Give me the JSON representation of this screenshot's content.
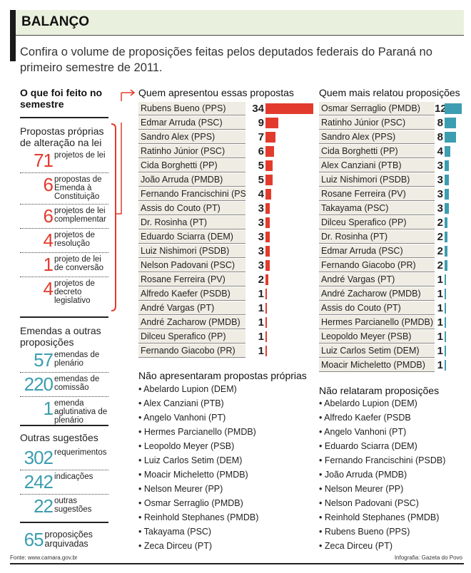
{
  "header": {
    "title": "BALANÇO",
    "subtitle": "Confira o volume de proposições feitas pelos deputados federais do Paraná no primeiro semestre de 2011."
  },
  "colors": {
    "red": "#e23b2e",
    "teal": "#3c9eb0",
    "header_bg": "#e9f1de",
    "row_bg": "#efece4"
  },
  "left": {
    "title": "O que foi feito no semestre",
    "propostas": {
      "title": "Propostas próprias de alteração na lei",
      "items": [
        {
          "n": "71",
          "label": "projetos de lei"
        },
        {
          "n": "6",
          "label": "propostas de Emenda à Constituição"
        },
        {
          "n": "6",
          "label": "projetos de lei complementar"
        },
        {
          "n": "4",
          "label": "projetos de resolução"
        },
        {
          "n": "1",
          "label": "projeto de lei de conversão"
        },
        {
          "n": "4",
          "label": "projetos de decreto legislativo"
        }
      ]
    },
    "emendas": {
      "title": "Emendas a outras proposições",
      "items": [
        {
          "n": "57",
          "label": "emendas de plenário"
        },
        {
          "n": "220",
          "label": "emendas de comissão"
        },
        {
          "n": "1",
          "label": "emenda aglutinativa de plenário"
        }
      ]
    },
    "outras": {
      "title": "Outras sugestões",
      "items": [
        {
          "n": "302",
          "label": "requerimentos"
        },
        {
          "n": "242",
          "label": "indicações"
        },
        {
          "n": "22",
          "label": "outras sugestões"
        }
      ]
    },
    "arquivadas": {
      "n": "65",
      "label": "proposições arquivadas"
    }
  },
  "chart_data": [
    {
      "type": "bar",
      "orientation": "horizontal",
      "title": "Quem apresentou essas propostas",
      "color": "#e23b2e",
      "categories": [
        "Rubens Bueno (PPS)",
        "Edmar Arruda (PSC)",
        "Sandro Alex (PPS)",
        "Ratinho Júnior (PSC)",
        "Cida Borghetti (PP)",
        "João Arruda (PMDB)",
        "Fernando Francischini (PSDB)",
        "Assis do Couto (PT)",
        "Dr. Rosinha (PT)",
        "Eduardo Sciarra (DEM)",
        "Luiz Nishimori (PSDB)",
        "Nelson Padovani (PSC)",
        "Rosane Ferreira (PV)",
        "Alfredo Kaefer (PSDB)",
        "André Vargas (PT)",
        "André Zacharow (PMDB)",
        "Dilceu Sperafico (PP)",
        "Fernando Giacobo (PR)"
      ],
      "values": [
        34,
        9,
        7,
        6,
        5,
        5,
        4,
        3,
        3,
        3,
        3,
        3,
        2,
        1,
        1,
        1,
        1,
        1
      ]
    },
    {
      "type": "bar",
      "orientation": "horizontal",
      "title": "Quem mais relatou proposições",
      "color": "#3c9eb0",
      "categories": [
        "Osmar Serraglio (PMDB)",
        "Ratinho Júnior (PSC)",
        "Sandro Alex (PPS)",
        "Cida Borghetti (PP)",
        "Alex Canziani (PTB)",
        "Luiz Nishimori (PSDB)",
        "Rosane Ferreira (PV)",
        "Takayama (PSC)",
        "Dilceu Sperafico (PP)",
        "Dr. Rosinha (PT)",
        "Edmar Arruda (PSC)",
        "Fernando Giacobo (PR)",
        "André Vargas (PT)",
        "André Zacharow (PMDB)",
        "Assis do Couto (PT)",
        "Hermes Parcianello (PMDB)",
        "Leopoldo Meyer (PSB)",
        "Luiz Carlos Setim (DEM)",
        "Moacir Micheletto (PMDB)"
      ],
      "values": [
        12,
        8,
        8,
        4,
        3,
        3,
        3,
        3,
        2,
        2,
        2,
        2,
        1,
        1,
        1,
        1,
        1,
        1,
        1
      ]
    }
  ],
  "nao_apresentaram": {
    "title": "Não apresentaram propostas próprias",
    "items": [
      "Abelardo Lupion (DEM)",
      "Alex Canziani (PTB)",
      "Angelo Vanhoni (PT)",
      "Hermes Parcianello (PMDB)",
      "Leopoldo Meyer (PSB)",
      "Luiz Carlos Setim (DEM)",
      "Moacir Micheletto (PMDB)",
      "Nelson Meurer (PP)",
      "Osmar Serraglio (PMDB)",
      "Reinhold Stephanes (PMDB)",
      "Takayama (PSC)",
      "Zeca Dirceu (PT)"
    ]
  },
  "nao_relataram": {
    "title": "Não relataram proposições",
    "items": [
      "Abelardo Lupion (DEM)",
      "Alfredo Kaefer (PSDB",
      "Angelo Vanhoni (PT)",
      "Eduardo Sciarra (DEM)",
      "Fernando Francischini (PSDB)",
      "João Arruda (PMDB)",
      "Nelson Meurer (PP)",
      "Nelson Padovani (PSC)",
      "Reinhold Stephanes (PMDB)",
      "Rubens Bueno (PPS)",
      "Zeca Dirceu (PT)"
    ]
  },
  "footer": {
    "source": "Fonte: www.camara.gov.br",
    "credit": "Infografia: Gazeta do Povo"
  }
}
